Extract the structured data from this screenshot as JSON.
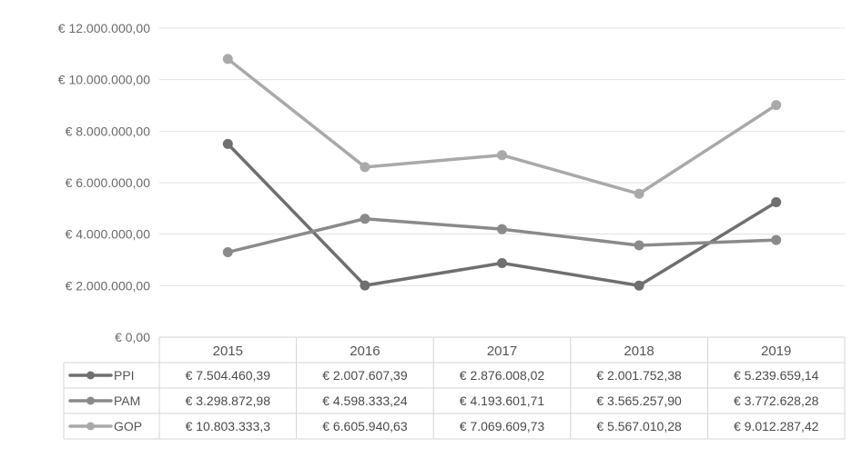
{
  "chart_data": {
    "type": "line",
    "categories": [
      "2015",
      "2016",
      "2017",
      "2018",
      "2019"
    ],
    "ylim": [
      0,
      12000000
    ],
    "yticks": [
      0,
      2000000,
      4000000,
      6000000,
      8000000,
      10000000,
      12000000
    ],
    "ytick_labels": [
      "€ 0,00",
      "€ 2.000.000,00",
      "€ 4.000.000,00",
      "€ 6.000.000,00",
      "€ 8.000.000,00",
      "€ 10.000.000,00",
      "€ 12.000.000,00"
    ],
    "grid": true,
    "legend": "data-table",
    "series": [
      {
        "name": "PPI",
        "values": [
          7504460.39,
          2007607.39,
          2876008.02,
          2001752.38,
          5239659.14
        ],
        "labels": [
          "€ 7.504.460,39",
          "€ 2.007.607,39",
          "€ 2.876.008,02",
          "€ 2.001.752,38",
          "€ 5.239.659,14"
        ],
        "color": "#6f6f6f"
      },
      {
        "name": "PAM",
        "values": [
          3298872.98,
          4598333.24,
          4193601.71,
          3565257.9,
          3772628.28
        ],
        "labels": [
          "€ 3.298.872,98",
          "€ 4.598.333,24",
          "€ 4.193.601,71",
          "€ 3.565.257,90",
          "€ 3.772.628,28"
        ],
        "color": "#8a8a8a"
      },
      {
        "name": "GOP",
        "values": [
          10803333.3,
          6605940.63,
          7069609.73,
          5567010.28,
          9012287.42
        ],
        "labels": [
          "€ 10.803.333,3",
          "€ 6.605.940,63",
          "€ 7.069.609,73",
          "€ 5.567.010,28",
          "€ 9.012.287,42"
        ],
        "color": "#a9a9a9"
      }
    ]
  }
}
